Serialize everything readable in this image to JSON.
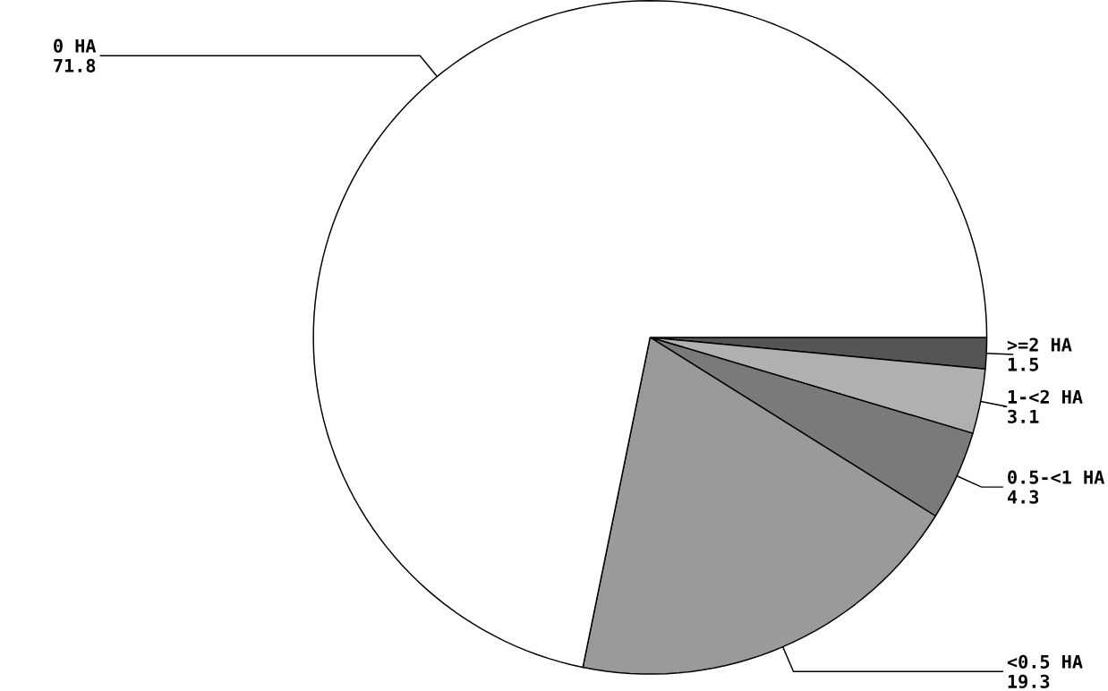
{
  "chart_data": {
    "type": "pie",
    "categories": [
      ">=2 HA",
      "1-<2 HA",
      "0.5-<1 HA",
      "<0.5 HA",
      "0 HA"
    ],
    "values": [
      1.5,
      3.1,
      4.3,
      19.3,
      71.8
    ],
    "colors": [
      "#555555",
      "#b0b0b0",
      "#7a7a7a",
      "#9a9a9a",
      "#ffffff"
    ],
    "data_labels": true
  }
}
